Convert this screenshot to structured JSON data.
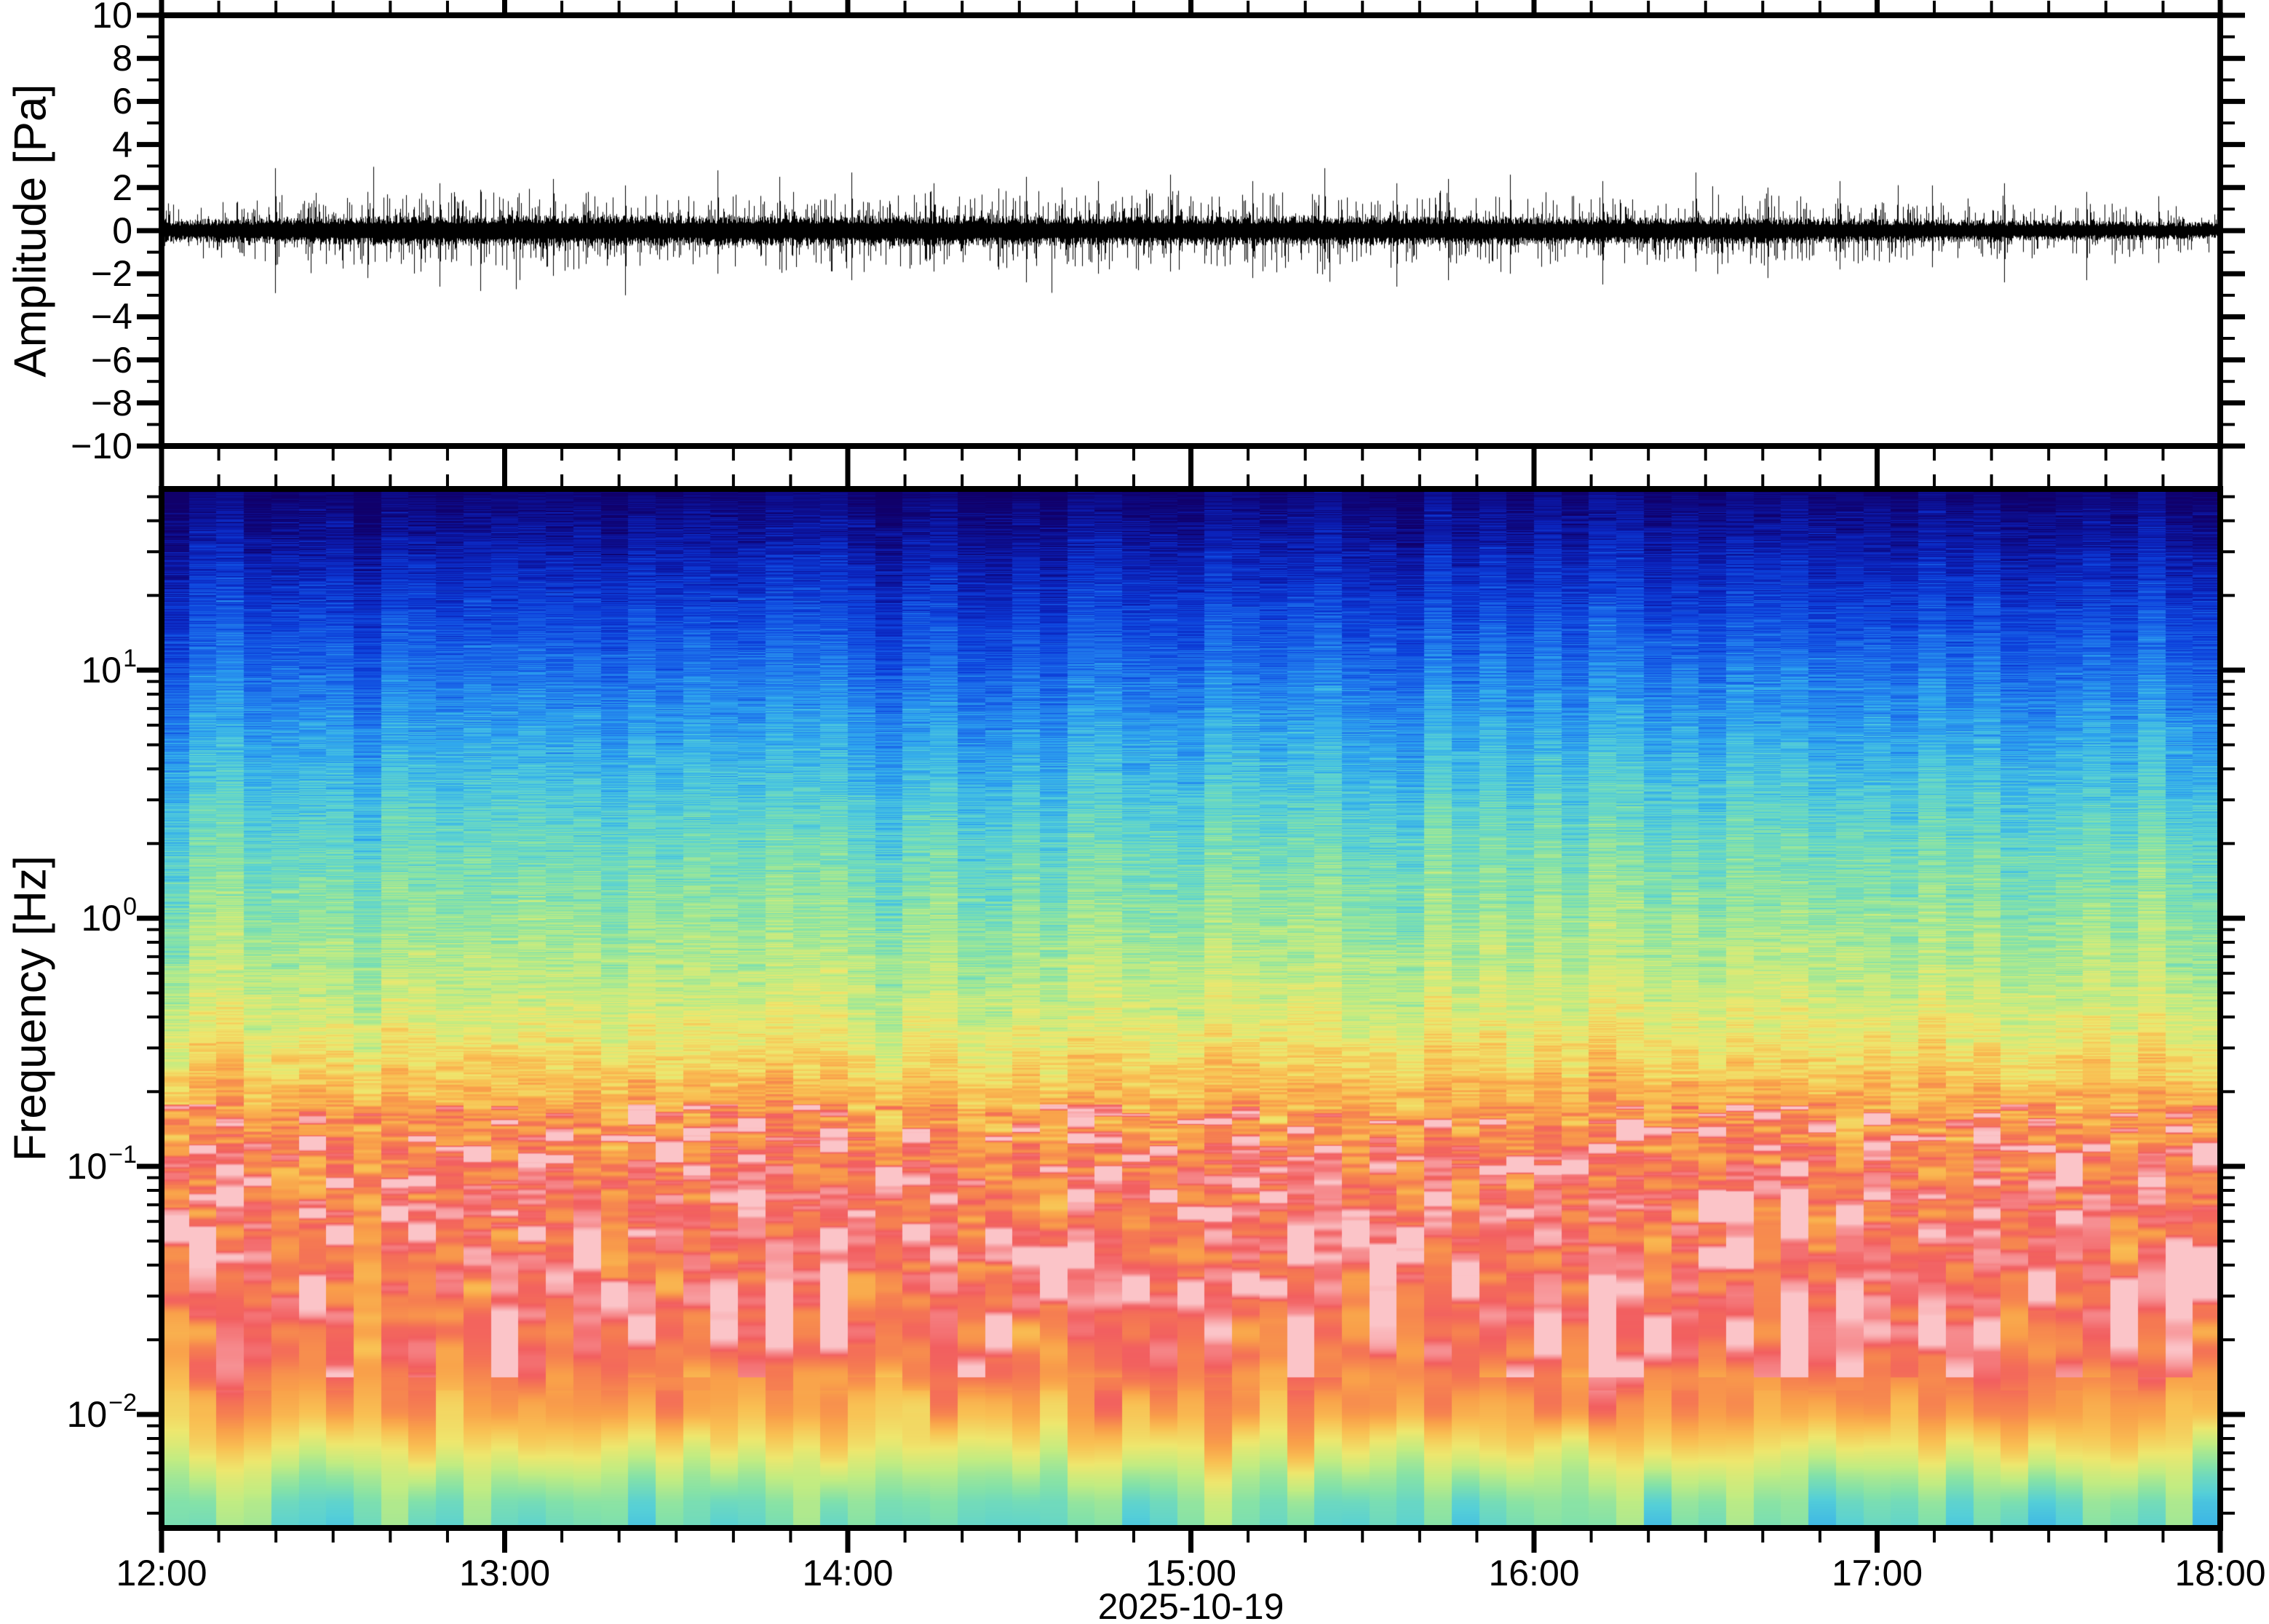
{
  "figure": {
    "date_label": "2025-10-19",
    "background": "#ffffff",
    "seed": 20251019
  },
  "chart_data": [
    {
      "type": "line",
      "name": "pressure-waveform",
      "ylabel": "Amplitude [Pa]",
      "ylim": [
        -10,
        10
      ],
      "y_major_step": 2,
      "y_minor_step": 1,
      "y_tick_labels": [
        {
          "value": 10,
          "label": "10"
        },
        {
          "value": 8,
          "label": "8"
        },
        {
          "value": 6,
          "label": "6"
        },
        {
          "value": 4,
          "label": "4"
        },
        {
          "value": 2,
          "label": "2"
        },
        {
          "value": 0,
          "label": "0"
        },
        {
          "value": -2,
          "label": "−2"
        },
        {
          "value": -4,
          "label": "−4"
        },
        {
          "value": -6,
          "label": "−6"
        },
        {
          "value": -8,
          "label": "−8"
        },
        {
          "value": -10,
          "label": "−10"
        }
      ],
      "x_tick_labels": [
        "12:00",
        "13:00",
        "14:00",
        "15:00",
        "16:00",
        "17:00",
        "18:00"
      ],
      "x_minor_tick_minutes": 10,
      "x_span_minutes": 360,
      "line_color": "#000000",
      "noise_core_band_pa": 0.7,
      "envelope": [
        [
          0.0,
          0.52
        ],
        [
          0.04,
          0.58
        ],
        [
          0.08,
          0.66
        ],
        [
          0.12,
          0.72
        ],
        [
          0.16,
          0.7
        ],
        [
          0.2,
          0.74
        ],
        [
          0.24,
          0.7
        ],
        [
          0.28,
          0.73
        ],
        [
          0.32,
          0.7
        ],
        [
          0.36,
          0.74
        ],
        [
          0.4,
          0.7
        ],
        [
          0.44,
          0.68
        ],
        [
          0.48,
          0.71
        ],
        [
          0.52,
          0.69
        ],
        [
          0.56,
          0.71
        ],
        [
          0.6,
          0.67
        ],
        [
          0.64,
          0.7
        ],
        [
          0.68,
          0.64
        ],
        [
          0.72,
          0.62
        ],
        [
          0.76,
          0.64
        ],
        [
          0.8,
          0.6
        ],
        [
          0.84,
          0.55
        ],
        [
          0.88,
          0.52
        ],
        [
          0.92,
          0.47
        ],
        [
          0.96,
          0.44
        ],
        [
          1.0,
          0.4
        ]
      ],
      "spikes": [
        {
          "t": 0.055,
          "up": 2.9,
          "down": -2.9
        },
        {
          "t": 0.1,
          "up": 1.8,
          "down": -2.2
        },
        {
          "t": 0.135,
          "up": 2.2,
          "down": -2.6
        },
        {
          "t": 0.155,
          "up": 1.9,
          "down": -2.8
        },
        {
          "t": 0.19,
          "up": 2.4,
          "down": -2.1
        },
        {
          "t": 0.225,
          "up": 2.1,
          "down": -3.0
        },
        {
          "t": 0.27,
          "up": 2.8,
          "down": -2.0
        },
        {
          "t": 0.3,
          "up": 2.5,
          "down": -1.8
        },
        {
          "t": 0.335,
          "up": 2.7,
          "down": -2.3
        },
        {
          "t": 0.375,
          "up": 2.2,
          "down": -1.9
        },
        {
          "t": 0.42,
          "up": 2.5,
          "down": -2.4
        },
        {
          "t": 0.455,
          "up": 2.3,
          "down": -2.0
        },
        {
          "t": 0.49,
          "up": 2.6,
          "down": -1.9
        },
        {
          "t": 0.53,
          "up": 2.3,
          "down": -2.2
        },
        {
          "t": 0.565,
          "up": 2.9,
          "down": -1.8
        },
        {
          "t": 0.6,
          "up": 2.2,
          "down": -2.6
        },
        {
          "t": 0.625,
          "up": 2.4,
          "down": -2.3
        },
        {
          "t": 0.655,
          "up": 2.6,
          "down": -2.0
        },
        {
          "t": 0.7,
          "up": 2.3,
          "down": -2.5
        },
        {
          "t": 0.745,
          "up": 2.7,
          "down": -1.9
        },
        {
          "t": 0.78,
          "up": 2.0,
          "down": -2.2
        },
        {
          "t": 0.815,
          "up": 2.3,
          "down": -1.8
        },
        {
          "t": 0.86,
          "up": 2.1,
          "down": -1.7
        },
        {
          "t": 0.895,
          "up": 2.2,
          "down": -2.4
        },
        {
          "t": 0.935,
          "up": 1.8,
          "down": -2.3
        },
        {
          "t": 0.97,
          "up": 1.6,
          "down": -1.5
        }
      ]
    },
    {
      "type": "heatmap",
      "name": "spectrogram",
      "ylabel": "Frequency [Hz]",
      "yscale": "log",
      "ylim_hz": [
        0.0035,
        53.7
      ],
      "log10_range": [
        -2.457,
        1.73
      ],
      "freq_tick_labels": [
        {
          "logf": 1,
          "base": "10",
          "exp": "1"
        },
        {
          "logf": 0,
          "base": "10",
          "exp": "0"
        },
        {
          "logf": -1,
          "base": "10",
          "exp": "−1"
        },
        {
          "logf": -2,
          "base": "10",
          "exp": "−2"
        }
      ],
      "time_columns": 75,
      "fft_bin_hz": 0.0036,
      "colormap_stops": [
        [
          0.0,
          "#10006a"
        ],
        [
          0.05,
          "#0d0b86"
        ],
        [
          0.12,
          "#0b1fb6"
        ],
        [
          0.2,
          "#0d41dc"
        ],
        [
          0.28,
          "#1e74ec"
        ],
        [
          0.35,
          "#2fa8ee"
        ],
        [
          0.42,
          "#55cfd8"
        ],
        [
          0.5,
          "#85e2a8"
        ],
        [
          0.58,
          "#c2ec82"
        ],
        [
          0.66,
          "#eee76e"
        ],
        [
          0.74,
          "#f9c053"
        ],
        [
          0.8,
          "#f9a04a"
        ],
        [
          0.86,
          "#f57a52"
        ],
        [
          0.9,
          "#f25f60"
        ],
        [
          0.95,
          "#f79598"
        ],
        [
          1.0,
          "#fbc4c8"
        ]
      ],
      "power_profile_logf_v": [
        [
          1.73,
          0.015
        ],
        [
          1.62,
          0.05
        ],
        [
          1.45,
          0.12
        ],
        [
          1.2,
          0.21
        ],
        [
          0.9,
          0.3
        ],
        [
          0.6,
          0.38
        ],
        [
          0.3,
          0.455
        ],
        [
          0.0,
          0.52
        ],
        [
          -0.25,
          0.575
        ],
        [
          -0.45,
          0.64
        ],
        [
          -0.6,
          0.7
        ],
        [
          -0.75,
          0.78
        ],
        [
          -0.9,
          0.84
        ],
        [
          -1.0,
          0.87
        ],
        [
          -1.2,
          0.89
        ],
        [
          -1.5,
          0.89
        ],
        [
          -1.8,
          0.86
        ],
        [
          -2.0,
          0.78
        ],
        [
          -2.12,
          0.68
        ],
        [
          -2.25,
          0.56
        ],
        [
          -2.35,
          0.49
        ],
        [
          -2.457,
          0.46
        ]
      ],
      "noise": {
        "fine_amp_high_f": 0.065,
        "fine_amp_mid_f": 0.05,
        "fine_amp_red_band": 0.055,
        "fine_amp_low_f": 0.05,
        "coarse_amp": 0.035,
        "coarse_amp_low_f": 0.06,
        "column_offset_amp": 0.05,
        "blob_zone_logf": [
          -1.85,
          -0.75
        ],
        "blob_threshold": 0.3,
        "blob_gain": 0.38
      }
    }
  ]
}
